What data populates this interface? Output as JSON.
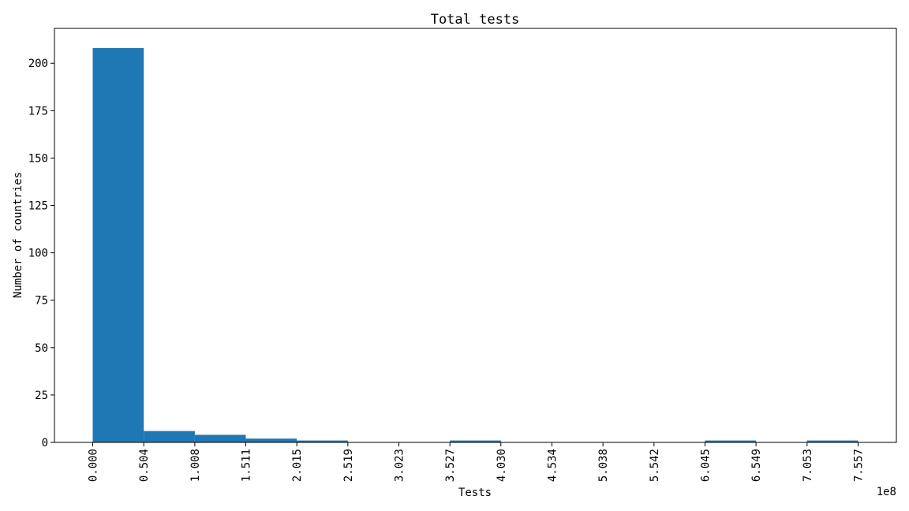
{
  "chart_data": {
    "type": "bar",
    "title": "Total tests",
    "xlabel": "Tests",
    "ylabel": "Number of countries",
    "x_scale_label": "1e8",
    "bin_edges": [
      0.0,
      0.504,
      1.008,
      1.511,
      2.015,
      2.519,
      3.023,
      3.527,
      4.03,
      4.534,
      5.038,
      5.542,
      6.045,
      6.549,
      7.053,
      7.557
    ],
    "x_tick_labels": [
      "0.000",
      "0.504",
      "1.008",
      "1.511",
      "2.015",
      "2.519",
      "3.023",
      "3.527",
      "4.030",
      "4.534",
      "5.038",
      "5.542",
      "6.045",
      "6.549",
      "7.053",
      "7.557"
    ],
    "values": [
      208,
      6,
      4,
      2,
      1,
      0,
      0,
      1,
      0,
      0,
      0,
      0,
      1,
      0,
      1
    ],
    "y_ticks": [
      0,
      25,
      50,
      75,
      100,
      125,
      150,
      175,
      200
    ],
    "ylim": [
      0,
      218.4
    ],
    "xlim": [
      -0.378,
      7.935
    ],
    "bar_color": "#1f77b4",
    "grid": false
  }
}
